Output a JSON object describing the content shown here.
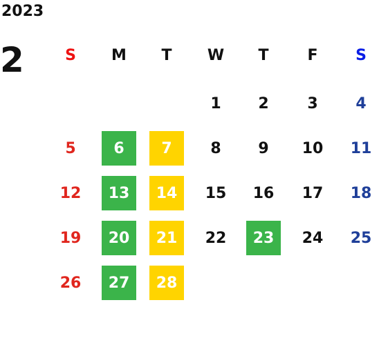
{
  "year": "2023",
  "month": "2",
  "weekdays": [
    "S",
    "M",
    "T",
    "W",
    "T",
    "F",
    "S"
  ],
  "weeks": [
    [
      null,
      null,
      null,
      1,
      2,
      3,
      4
    ],
    [
      5,
      {
        "day": 6,
        "fill": "#3bb44a"
      },
      {
        "day": 7,
        "fill": "#ffd400"
      },
      8,
      9,
      10,
      11
    ],
    [
      12,
      {
        "day": 13,
        "fill": "#3bb44a"
      },
      {
        "day": 14,
        "fill": "#ffd400"
      },
      15,
      16,
      17,
      18
    ],
    [
      19,
      {
        "day": 20,
        "fill": "#3bb44a"
      },
      {
        "day": 21,
        "fill": "#ffd400"
      },
      22,
      {
        "day": 23,
        "fill": "#3bb44a"
      },
      24,
      25
    ],
    [
      26,
      {
        "day": 27,
        "fill": "#3bb44a"
      },
      {
        "day": 28,
        "fill": "#ffd400"
      },
      null,
      null,
      null,
      null
    ]
  ]
}
